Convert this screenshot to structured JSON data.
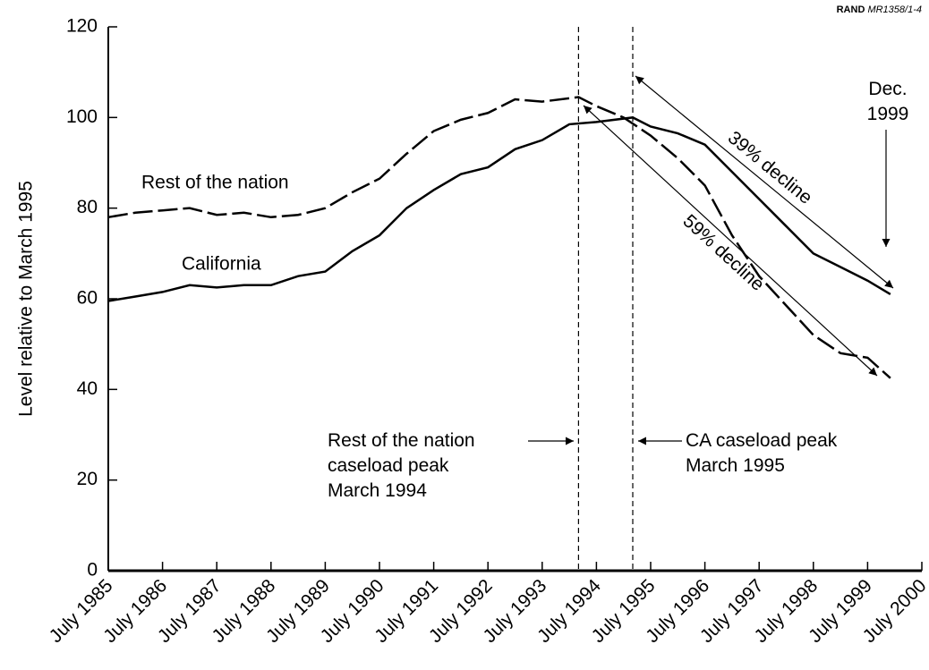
{
  "chart_data": {
    "type": "line",
    "source": {
      "org": "RAND",
      "id": "MR1358/1-4"
    },
    "ylabel": "Level relative to March 1995",
    "xlim": [
      1985.5,
      2000.5
    ],
    "xticks": [
      {
        "value": 1985.5,
        "label": "July 1985"
      },
      {
        "value": 1986.5,
        "label": "July 1986"
      },
      {
        "value": 1987.5,
        "label": "July 1987"
      },
      {
        "value": 1988.5,
        "label": "July 1988"
      },
      {
        "value": 1989.5,
        "label": "July 1989"
      },
      {
        "value": 1990.5,
        "label": "July 1990"
      },
      {
        "value": 1991.5,
        "label": "July 1991"
      },
      {
        "value": 1992.5,
        "label": "July 1992"
      },
      {
        "value": 1993.5,
        "label": "July 1993"
      },
      {
        "value": 1994.5,
        "label": "July 1994"
      },
      {
        "value": 1995.5,
        "label": "July 1995"
      },
      {
        "value": 1996.5,
        "label": "July 1996"
      },
      {
        "value": 1997.5,
        "label": "July 1997"
      },
      {
        "value": 1998.5,
        "label": "July 1998"
      },
      {
        "value": 1999.5,
        "label": "July 1999"
      },
      {
        "value": 2000.5,
        "label": "July 2000"
      }
    ],
    "ylim": [
      0,
      120
    ],
    "yticks": [
      0,
      20,
      40,
      60,
      80,
      100,
      120
    ],
    "markers": [
      1994.17,
      1995.17
    ],
    "series": [
      {
        "name": "Rest of the nation",
        "color": "#000000",
        "style": "dashed",
        "x": [
          1985.5,
          1986.0,
          1986.5,
          1987.0,
          1987.5,
          1988.0,
          1988.5,
          1989.0,
          1989.5,
          1990.0,
          1990.5,
          1991.0,
          1991.5,
          1992.0,
          1992.5,
          1993.0,
          1993.5,
          1994.17,
          1994.5,
          1995.0,
          1995.5,
          1996.0,
          1996.5,
          1997.0,
          1997.5,
          1998.0,
          1998.5,
          1999.0,
          1999.5,
          1999.92
        ],
        "values": [
          78,
          79,
          79.5,
          80,
          78.5,
          79,
          78,
          78.5,
          80,
          83.5,
          86.5,
          92,
          97,
          99.5,
          101,
          104,
          103.5,
          104.5,
          102.5,
          100,
          96,
          91,
          85,
          74,
          65,
          58.5,
          52,
          48,
          47,
          42.5
        ]
      },
      {
        "name": "California",
        "color": "#000000",
        "style": "solid",
        "x": [
          1985.5,
          1986.0,
          1986.5,
          1987.0,
          1987.5,
          1988.0,
          1988.5,
          1989.0,
          1989.5,
          1990.0,
          1990.5,
          1991.0,
          1991.5,
          1992.0,
          1992.5,
          1993.0,
          1993.5,
          1994.0,
          1994.5,
          1995.17,
          1995.5,
          1996.0,
          1996.5,
          1997.0,
          1997.5,
          1998.0,
          1998.5,
          1999.0,
          1999.5,
          1999.92
        ],
        "values": [
          59.5,
          60.5,
          61.5,
          63,
          62.5,
          63,
          63,
          65,
          66,
          70.5,
          74,
          80,
          84,
          87.5,
          89,
          93,
          95,
          98.5,
          99,
          100,
          98,
          96.5,
          94,
          88,
          82,
          76,
          70,
          67,
          64,
          61
        ]
      }
    ],
    "annotations": [
      {
        "lines": [
          "39% decline"
        ]
      },
      {
        "lines": [
          "59% decline"
        ]
      },
      {
        "lines": [
          "Dec.",
          "1999"
        ]
      },
      {
        "lines": [
          "Rest of the nation",
          "caseload peak",
          "March 1994"
        ]
      },
      {
        "lines": [
          "CA caseload peak",
          "March 1995"
        ]
      }
    ]
  }
}
